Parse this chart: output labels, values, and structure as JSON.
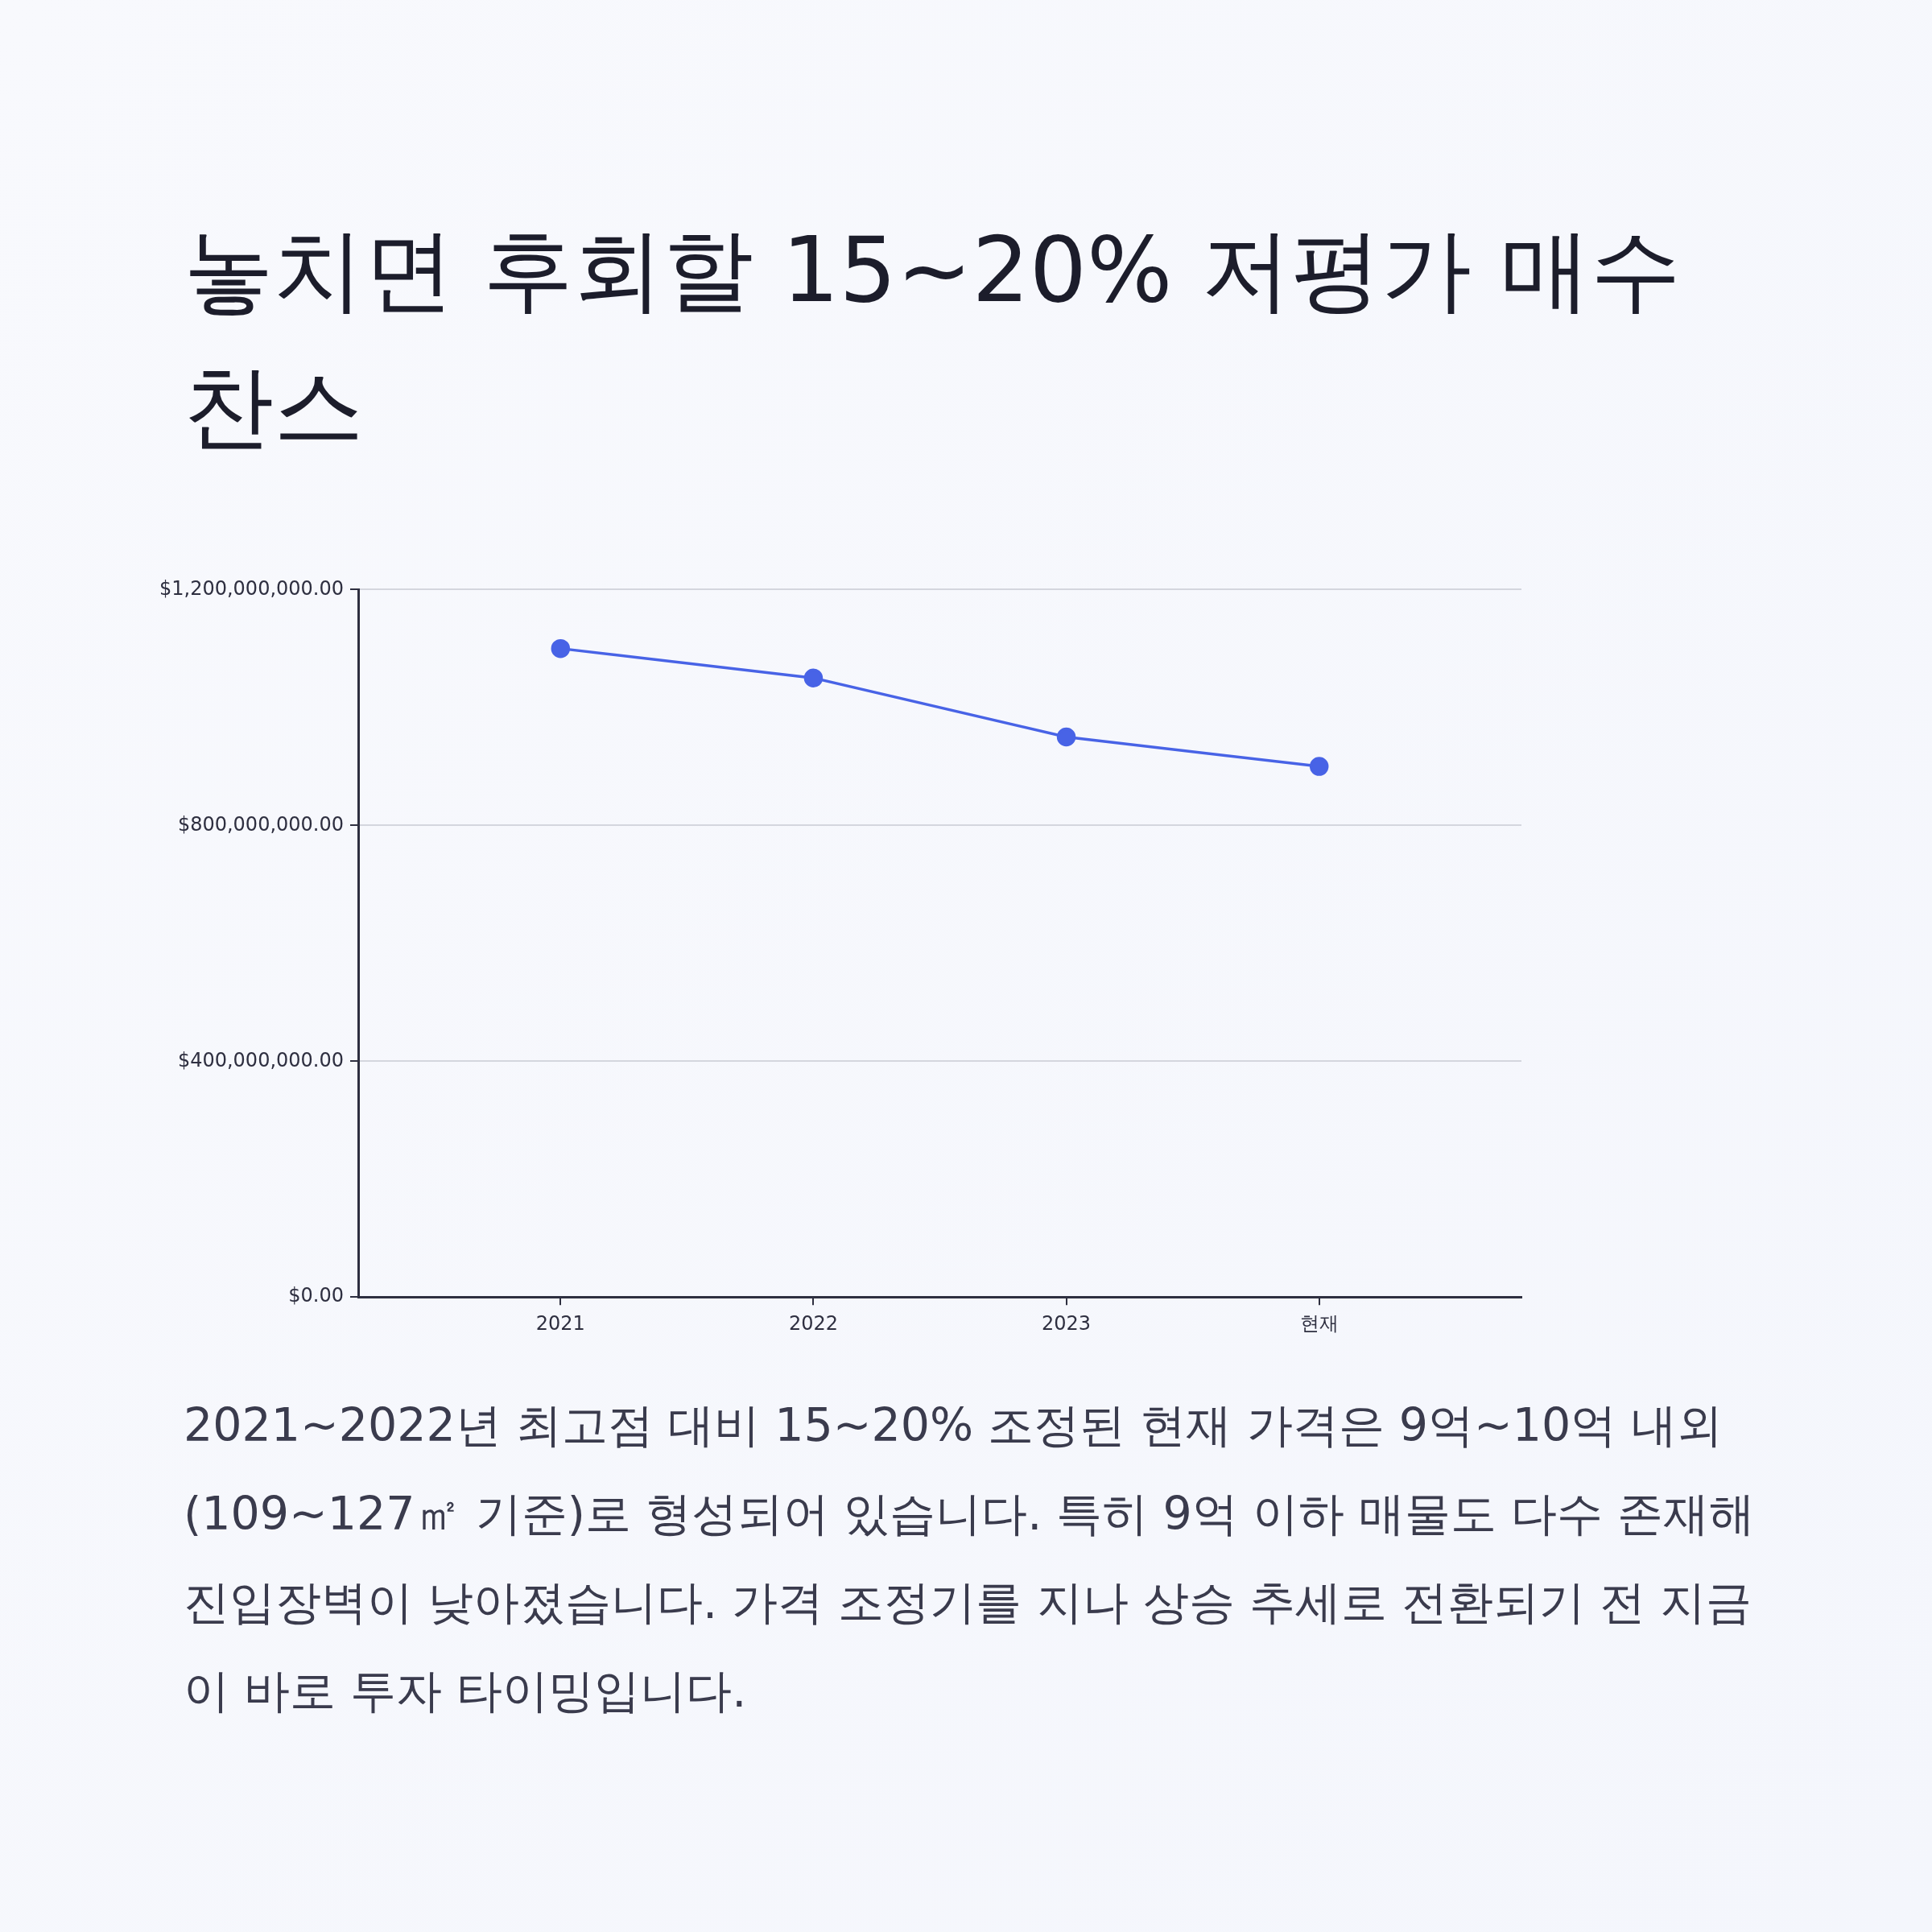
{
  "chart_data": {
    "type": "line",
    "title": "놓치면 후회할 15~20% 저평가 매수 찬스",
    "categories": [
      "2021",
      "2022",
      "2023",
      "현재"
    ],
    "series": [
      {
        "color": "#4863e6",
        "values": [
          1100000000,
          1050000000,
          950000000,
          900000000
        ]
      }
    ],
    "ylim": [
      0,
      1200000000
    ],
    "yticks": [
      {
        "value": 0,
        "label": "$0.00"
      },
      {
        "value": 400000000,
        "label": "$400,000,000.00"
      },
      {
        "value": 800000000,
        "label": "$800,000,000.00"
      },
      {
        "value": 1200000000,
        "label": "$1,200,000,000.00"
      }
    ],
    "grid": "y",
    "marker": "circle",
    "line_style": "solid",
    "annotations": [
      "2021~2022년 최고점 대비 15~20% 조정된 현재 가격은 9억~10억 내외(109~127㎡ 기준)로 형성되어 있습니다. 특히 9억 이하 매물도 다수 존재해 진입장벽이 낮아졌습니다. 가격 조정기를 지나 상승 추세로 전환되기 전 지금이 바로 투자 타이밍입니다."
    ]
  }
}
